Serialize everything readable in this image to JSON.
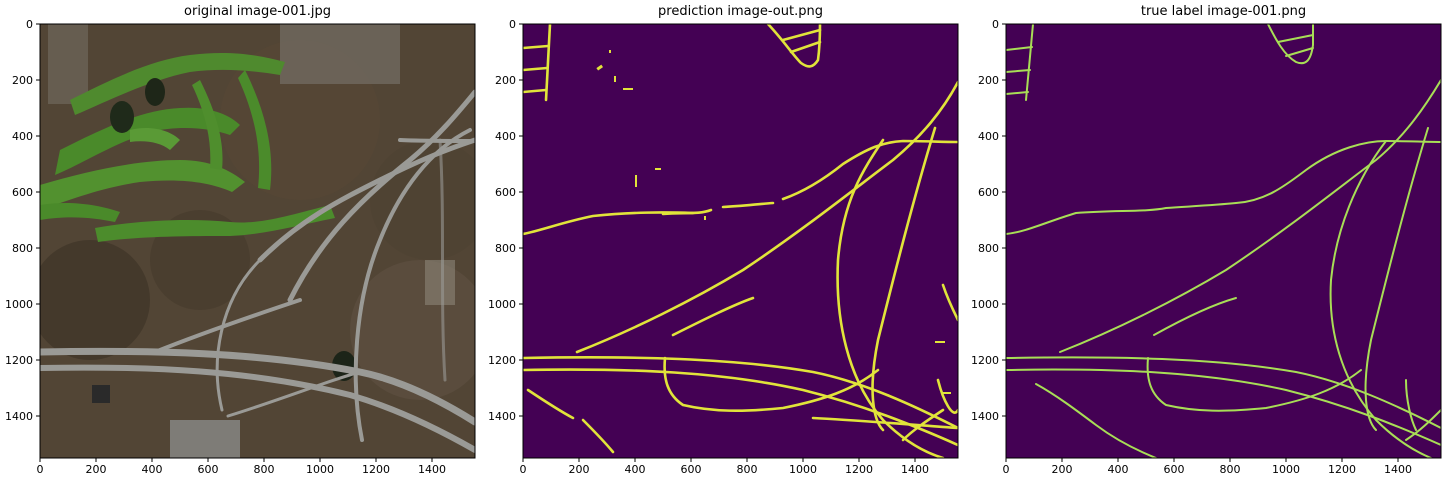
{
  "panels": [
    {
      "title": "original image-001.jpg",
      "kind": "satellite"
    },
    {
      "title": "prediction image-out.png",
      "kind": "prediction"
    },
    {
      "title": "true label image-001.png",
      "kind": "label"
    }
  ],
  "axes": {
    "x_ticks": [
      0,
      200,
      400,
      600,
      800,
      1000,
      1200,
      1400
    ],
    "y_ticks": [
      0,
      200,
      400,
      600,
      800,
      1000,
      1200,
      1400
    ],
    "extent": 1550
  },
  "colors": {
    "mask_background": "#440154",
    "road_prediction": "#e1e43a",
    "road_label": "#a8de56"
  }
}
